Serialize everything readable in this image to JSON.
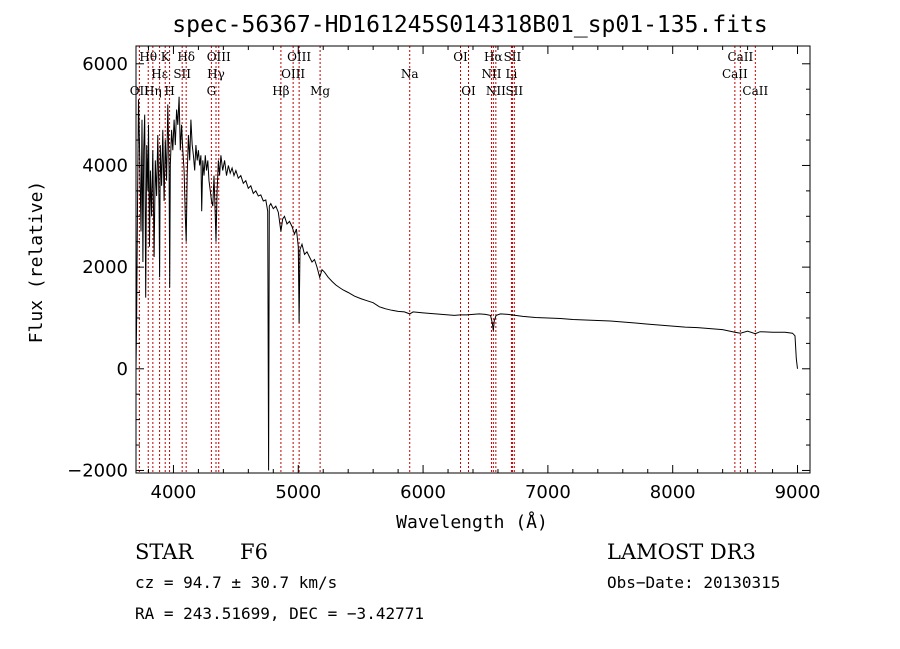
{
  "chart_data": {
    "type": "line",
    "title": "spec-56367-HD161245S014318B01_sp01-135.fits",
    "xlabel": "Wavelength (Å)",
    "ylabel": "Flux (relative)",
    "xlim": [
      3700,
      9100
    ],
    "ylim": [
      -2050,
      6350
    ],
    "x_ticks": [
      4000,
      5000,
      6000,
      7000,
      8000,
      9000
    ],
    "y_ticks": [
      -2000,
      0,
      2000,
      4000,
      6000
    ],
    "x_tick_labels": [
      "4000",
      "5000",
      "6000",
      "7000",
      "8000",
      "9000"
    ],
    "y_tick_labels": [
      "−2000",
      "0",
      "2000",
      "4000",
      "6000"
    ],
    "grid": false,
    "series": [
      {
        "color": "#000000",
        "points": [
          [
            3700,
            0
          ],
          [
            3705,
            900
          ],
          [
            3712,
            3200
          ],
          [
            3720,
            5300
          ],
          [
            3730,
            4200
          ],
          [
            3740,
            2700
          ],
          [
            3748,
            4900
          ],
          [
            3755,
            2100
          ],
          [
            3762,
            4300
          ],
          [
            3770,
            5000
          ],
          [
            3778,
            1400
          ],
          [
            3786,
            4400
          ],
          [
            3795,
            3500
          ],
          [
            3800,
            4800
          ],
          [
            3808,
            2400
          ],
          [
            3815,
            3900
          ],
          [
            3825,
            3000
          ],
          [
            3835,
            4300
          ],
          [
            3845,
            2200
          ],
          [
            3855,
            4100
          ],
          [
            3865,
            3400
          ],
          [
            3875,
            4600
          ],
          [
            3885,
            3200
          ],
          [
            3889,
            1800
          ],
          [
            3895,
            4400
          ],
          [
            3905,
            3600
          ],
          [
            3915,
            4700
          ],
          [
            3925,
            3300
          ],
          [
            3935,
            4500
          ],
          [
            3945,
            3700
          ],
          [
            3955,
            5200
          ],
          [
            3965,
            3900
          ],
          [
            3970,
            1600
          ],
          [
            3975,
            4000
          ],
          [
            3985,
            4700
          ],
          [
            3995,
            4300
          ],
          [
            4005,
            4900
          ],
          [
            4015,
            4400
          ],
          [
            4025,
            5100
          ],
          [
            4035,
            4800
          ],
          [
            4045,
            5350
          ],
          [
            4055,
            4300
          ],
          [
            4065,
            4800
          ],
          [
            4075,
            4300
          ],
          [
            4085,
            3900
          ],
          [
            4095,
            3000
          ],
          [
            4102,
            2500
          ],
          [
            4110,
            3800
          ],
          [
            4120,
            4600
          ],
          [
            4130,
            4100
          ],
          [
            4140,
            4900
          ],
          [
            4150,
            4400
          ],
          [
            4160,
            4200
          ],
          [
            4170,
            3900
          ],
          [
            4180,
            4400
          ],
          [
            4190,
            4100
          ],
          [
            4200,
            4300
          ],
          [
            4210,
            4000
          ],
          [
            4220,
            4200
          ],
          [
            4226,
            3100
          ],
          [
            4235,
            4100
          ],
          [
            4245,
            3800
          ],
          [
            4255,
            4200
          ],
          [
            4265,
            3900
          ],
          [
            4275,
            4100
          ],
          [
            4285,
            3700
          ],
          [
            4295,
            3500
          ],
          [
            4305,
            3300
          ],
          [
            4315,
            3200
          ],
          [
            4325,
            3800
          ],
          [
            4335,
            3000
          ],
          [
            4341,
            2500
          ],
          [
            4350,
            3500
          ],
          [
            4360,
            4100
          ],
          [
            4370,
            3800
          ],
          [
            4380,
            4200
          ],
          [
            4395,
            3900
          ],
          [
            4410,
            4100
          ],
          [
            4425,
            3800
          ],
          [
            4440,
            4000
          ],
          [
            4455,
            3850
          ],
          [
            4470,
            3950
          ],
          [
            4485,
            3800
          ],
          [
            4500,
            3900
          ],
          [
            4520,
            3750
          ],
          [
            4540,
            3800
          ],
          [
            4560,
            3650
          ],
          [
            4580,
            3700
          ],
          [
            4600,
            3550
          ],
          [
            4620,
            3600
          ],
          [
            4640,
            3450
          ],
          [
            4660,
            3500
          ],
          [
            4680,
            3400
          ],
          [
            4700,
            3420
          ],
          [
            4720,
            3300
          ],
          [
            4740,
            3320
          ],
          [
            4755,
            3100
          ],
          [
            4762,
            -2000
          ],
          [
            4768,
            3200
          ],
          [
            4780,
            3250
          ],
          [
            4800,
            3150
          ],
          [
            4820,
            3200
          ],
          [
            4840,
            3080
          ],
          [
            4861,
            2700
          ],
          [
            4875,
            2950
          ],
          [
            4890,
            3000
          ],
          [
            4910,
            2850
          ],
          [
            4930,
            2900
          ],
          [
            4950,
            2800
          ],
          [
            4970,
            2650
          ],
          [
            4985,
            2750
          ],
          [
            5000,
            2400
          ],
          [
            5007,
            900
          ],
          [
            5014,
            2350
          ],
          [
            5030,
            2450
          ],
          [
            5050,
            2250
          ],
          [
            5070,
            2300
          ],
          [
            5090,
            2200
          ],
          [
            5110,
            2100
          ],
          [
            5130,
            2150
          ],
          [
            5150,
            2000
          ],
          [
            5172,
            1800
          ],
          [
            5190,
            1950
          ],
          [
            5210,
            1900
          ],
          [
            5240,
            1800
          ],
          [
            5270,
            1720
          ],
          [
            5300,
            1650
          ],
          [
            5330,
            1600
          ],
          [
            5360,
            1550
          ],
          [
            5400,
            1500
          ],
          [
            5450,
            1430
          ],
          [
            5500,
            1380
          ],
          [
            5550,
            1340
          ],
          [
            5600,
            1300
          ],
          [
            5650,
            1220
          ],
          [
            5700,
            1180
          ],
          [
            5750,
            1150
          ],
          [
            5800,
            1130
          ],
          [
            5850,
            1120
          ],
          [
            5893,
            1080
          ],
          [
            5920,
            1120
          ],
          [
            5960,
            1110
          ],
          [
            6000,
            1100
          ],
          [
            6050,
            1090
          ],
          [
            6100,
            1080
          ],
          [
            6150,
            1070
          ],
          [
            6200,
            1060
          ],
          [
            6250,
            1050
          ],
          [
            6300,
            1060
          ],
          [
            6350,
            1060
          ],
          [
            6400,
            1070
          ],
          [
            6450,
            1080
          ],
          [
            6500,
            1070
          ],
          [
            6540,
            1050
          ],
          [
            6555,
            900
          ],
          [
            6563,
            750
          ],
          [
            6571,
            950
          ],
          [
            6585,
            1050
          ],
          [
            6620,
            1080
          ],
          [
            6680,
            1070
          ],
          [
            6740,
            1050
          ],
          [
            6800,
            1030
          ],
          [
            6900,
            1010
          ],
          [
            7000,
            1000
          ],
          [
            7100,
            990
          ],
          [
            7200,
            970
          ],
          [
            7300,
            960
          ],
          [
            7400,
            950
          ],
          [
            7500,
            940
          ],
          [
            7600,
            920
          ],
          [
            7700,
            900
          ],
          [
            7800,
            880
          ],
          [
            7900,
            860
          ],
          [
            8000,
            840
          ],
          [
            8100,
            820
          ],
          [
            8200,
            810
          ],
          [
            8300,
            790
          ],
          [
            8400,
            770
          ],
          [
            8498,
            720
          ],
          [
            8542,
            700
          ],
          [
            8600,
            740
          ],
          [
            8662,
            690
          ],
          [
            8700,
            730
          ],
          [
            8800,
            720
          ],
          [
            8900,
            720
          ],
          [
            8960,
            700
          ],
          [
            8980,
            650
          ],
          [
            8990,
            200
          ],
          [
            9000,
            0
          ]
        ]
      }
    ],
    "lines": [
      {
        "wl": 3727,
        "labels": [
          "OII"
        ],
        "row": 3
      },
      {
        "wl": 3798,
        "labels": [
          "Hθ"
        ],
        "row": 1
      },
      {
        "wl": 3835,
        "labels": [
          "Hη"
        ],
        "row": 3
      },
      {
        "wl": 3889,
        "labels": [
          "Hε"
        ],
        "row": 2
      },
      {
        "wl": 3934,
        "labels": [
          "K"
        ],
        "row": 1
      },
      {
        "wl": 3969,
        "labels": [
          "H"
        ],
        "row": 3
      },
      {
        "wl": 4070,
        "labels": [
          "SII"
        ],
        "row": 2
      },
      {
        "wl": 4102,
        "labels": [
          "Hδ"
        ],
        "row": 1
      },
      {
        "wl": 4304,
        "labels": [
          "G"
        ],
        "row": 3
      },
      {
        "wl": 4341,
        "labels": [
          "Hγ"
        ],
        "row": 2
      },
      {
        "wl": 4363,
        "labels": [
          "OIII"
        ],
        "row": 1
      },
      {
        "wl": 4861,
        "labels": [
          "Hβ"
        ],
        "row": 3
      },
      {
        "wl": 4959,
        "labels": [
          "OIII"
        ],
        "row": 2
      },
      {
        "wl": 5007,
        "labels": [
          "OIII"
        ],
        "row": 1
      },
      {
        "wl": 5175,
        "labels": [
          "Mg"
        ],
        "row": 3
      },
      {
        "wl": 5893,
        "labels": [
          "Na"
        ],
        "row": 2
      },
      {
        "wl": 6300,
        "labels": [
          "OI"
        ],
        "row": 1
      },
      {
        "wl": 6364,
        "labels": [
          "OI"
        ],
        "row": 3
      },
      {
        "wl": 6548,
        "labels": [
          "NII"
        ],
        "row": 2
      },
      {
        "wl": 6563,
        "labels": [
          "Hα"
        ],
        "row": 1
      },
      {
        "wl": 6583,
        "labels": [
          "NII"
        ],
        "row": 3
      },
      {
        "wl": 6708,
        "labels": [
          "Li"
        ],
        "row": 2
      },
      {
        "wl": 6716,
        "labels": [
          "SII"
        ],
        "row": 1
      },
      {
        "wl": 6731,
        "labels": [
          "SII"
        ],
        "row": 3
      },
      {
        "wl": 8498,
        "labels": [
          "CaII"
        ],
        "row": 2
      },
      {
        "wl": 8542,
        "labels": [
          "CaII"
        ],
        "row": 1
      },
      {
        "wl": 8662,
        "labels": [
          "CaII"
        ],
        "row": 3
      }
    ]
  },
  "info": {
    "object_class": "STAR",
    "subclass": "F6",
    "redshift": "cz = 94.7 ± 30.7 km/s",
    "coords": "RA = 243.51699, DEC =  −3.42771",
    "survey": "LAMOST DR3",
    "obs_date": "Obs−Date: 20130315"
  }
}
